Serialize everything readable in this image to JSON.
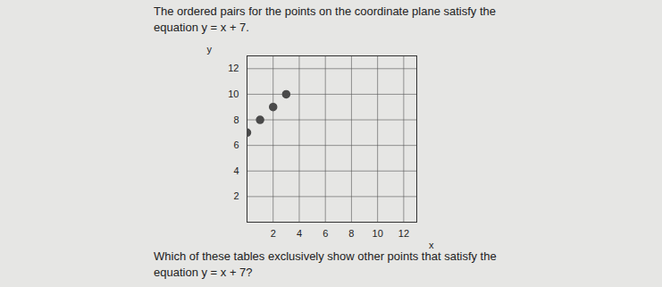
{
  "chart_data": {
    "type": "scatter",
    "title": "The ordered pairs for the points on the coordinate plane satisfy the equation y = x + 7.",
    "annotations": [
      "Which of these tables exclusively show other points that satisfy the equation y = x + 7?"
    ],
    "x_label": "x",
    "y_label": "y",
    "x": [
      0,
      1,
      2,
      3
    ],
    "values": [
      7,
      8,
      9,
      10
    ],
    "color": "#4a4a4a",
    "marker": "circle",
    "xlim": [
      0,
      13
    ],
    "ylim": [
      0,
      13
    ],
    "xticks": [
      2,
      4,
      6,
      8,
      10,
      12
    ],
    "yticks": [
      2,
      4,
      6,
      8,
      10,
      12
    ],
    "grid": true
  }
}
